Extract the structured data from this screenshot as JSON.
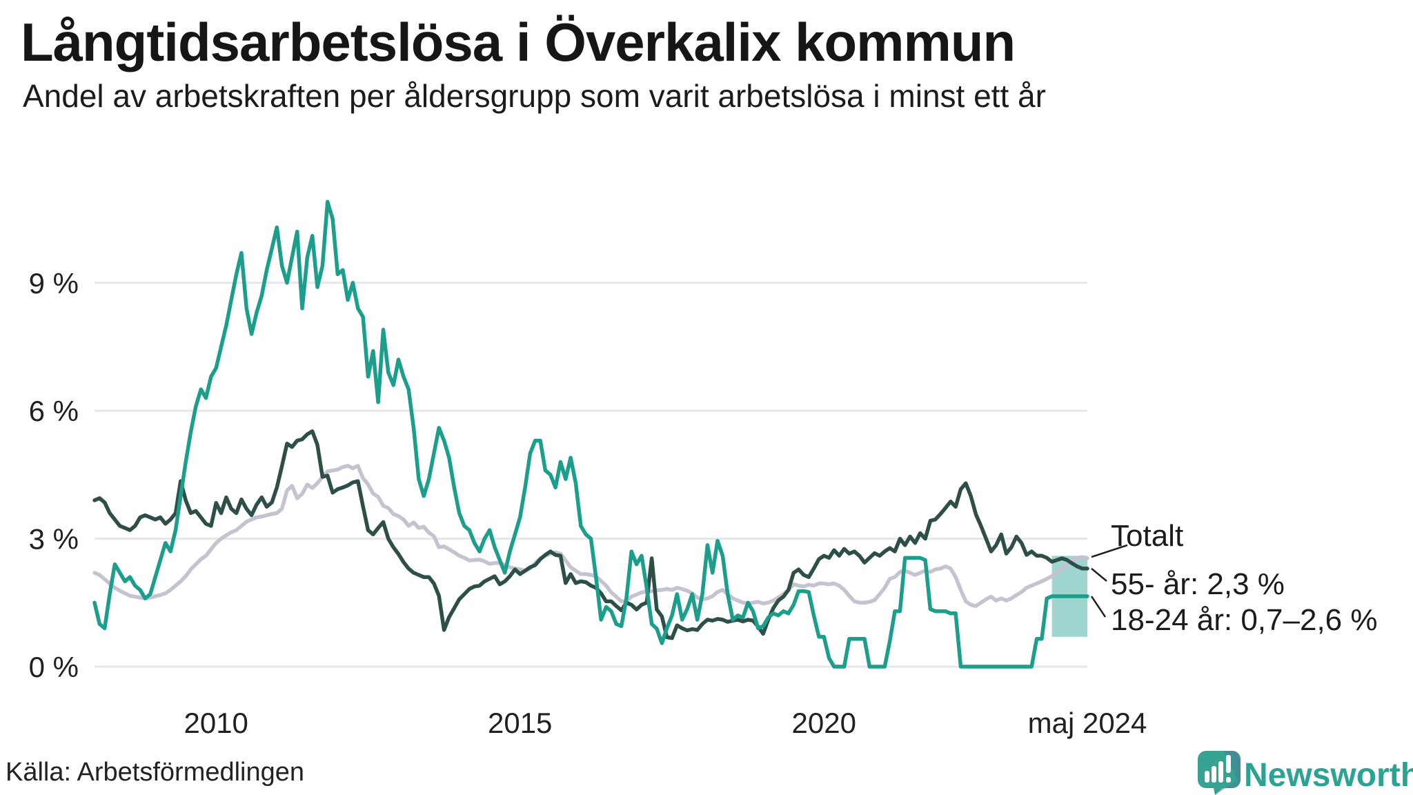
{
  "header": {
    "title": "Långtidsarbetslösa i Överkalix kommun",
    "subtitle": "Andel av arbetskraften per åldersgrupp som varit arbetslösa i minst ett år"
  },
  "footer": {
    "source": "Källa: Arbetsförmedlingen",
    "brand": "Newsworthy"
  },
  "colors": {
    "background": "#ffffff",
    "gridline": "#e7e7eb",
    "text": "#1b1b1b",
    "axis_text": "#202020",
    "brand_teal": "#2ba393",
    "leader_line": "#1f1f1f"
  },
  "chart_data": {
    "type": "line",
    "title": "Långtidsarbetslösa i Överkalix kommun",
    "subtitle": "Andel av arbetskraften per åldersgrupp som varit arbetslösa i minst ett år",
    "x_unit": "month",
    "x_start": "2008-01",
    "x_end": "2024-05",
    "months_total": 197,
    "ylim": [
      0,
      11.5
    ],
    "grid": true,
    "yticks": [
      {
        "value": 0,
        "label": "0 %"
      },
      {
        "value": 3,
        "label": "3 %"
      },
      {
        "value": 6,
        "label": "6 %"
      },
      {
        "value": 9,
        "label": "9 %"
      }
    ],
    "xticks": [
      {
        "month_index": 24,
        "label": "2010"
      },
      {
        "month_index": 84,
        "label": "2015"
      },
      {
        "month_index": 144,
        "label": "2020"
      },
      {
        "month_index": 196,
        "label": "maj 2024"
      }
    ],
    "series": [
      {
        "name": "Totalt",
        "color": "#c5c3cf",
        "values": [
          2.2,
          2.15,
          2.05,
          1.95,
          1.85,
          1.78,
          1.72,
          1.66,
          1.64,
          1.62,
          1.6,
          1.62,
          1.65,
          1.68,
          1.72,
          1.8,
          1.9,
          2.0,
          2.12,
          2.28,
          2.4,
          2.52,
          2.6,
          2.75,
          2.9,
          3.0,
          3.08,
          3.15,
          3.2,
          3.3,
          3.4,
          3.45,
          3.5,
          3.52,
          3.55,
          3.58,
          3.6,
          3.7,
          4.13,
          4.24,
          3.95,
          4.05,
          4.27,
          4.19,
          4.3,
          4.45,
          4.58,
          4.6,
          4.62,
          4.68,
          4.71,
          4.65,
          4.71,
          4.42,
          4.27,
          4.06,
          3.98,
          3.77,
          3.72,
          3.58,
          3.53,
          3.45,
          3.3,
          3.38,
          3.25,
          3.28,
          3.14,
          3.06,
          2.8,
          2.82,
          2.75,
          2.68,
          2.6,
          2.55,
          2.49,
          2.5,
          2.51,
          2.47,
          2.41,
          2.43,
          2.43,
          2.38,
          2.33,
          2.3,
          2.28,
          2.25,
          2.3,
          2.43,
          2.54,
          2.6,
          2.65,
          2.68,
          2.65,
          2.49,
          2.33,
          2.25,
          2.17,
          2.17,
          2.15,
          2.12,
          2.01,
          1.9,
          1.74,
          1.64,
          1.53,
          1.53,
          1.64,
          1.69,
          1.74,
          1.76,
          1.77,
          1.79,
          1.8,
          1.82,
          1.8,
          1.85,
          1.82,
          1.78,
          1.72,
          1.62,
          1.58,
          1.6,
          1.65,
          1.75,
          1.8,
          1.7,
          1.6,
          1.55,
          1.5,
          1.48,
          1.5,
          1.52,
          1.48,
          1.5,
          1.55,
          1.62,
          1.7,
          1.8,
          1.93,
          1.9,
          1.88,
          1.92,
          1.9,
          1.95,
          1.95,
          1.93,
          1.95,
          1.9,
          1.8,
          1.66,
          1.53,
          1.5,
          1.5,
          1.52,
          1.56,
          1.7,
          1.85,
          2.06,
          2.1,
          2.22,
          2.25,
          2.2,
          2.15,
          2.2,
          2.25,
          2.22,
          2.28,
          2.3,
          2.35,
          2.3,
          2.1,
          1.8,
          1.53,
          1.45,
          1.42,
          1.5,
          1.58,
          1.64,
          1.55,
          1.6,
          1.55,
          1.6,
          1.68,
          1.75,
          1.85,
          1.9,
          1.95,
          2.0,
          2.06,
          2.12,
          2.2,
          2.3,
          2.4,
          2.49,
          2.55,
          2.57,
          2.54
        ]
      },
      {
        "name": "55- år",
        "color": "#2d4f47",
        "end_label_value": "2,3 %",
        "values": [
          3.9,
          3.95,
          3.85,
          3.6,
          3.45,
          3.3,
          3.25,
          3.2,
          3.3,
          3.5,
          3.55,
          3.5,
          3.45,
          3.5,
          3.35,
          3.45,
          3.6,
          4.35,
          3.9,
          3.6,
          3.65,
          3.5,
          3.35,
          3.3,
          3.84,
          3.6,
          3.97,
          3.7,
          3.6,
          3.92,
          3.7,
          3.55,
          3.8,
          3.97,
          3.75,
          3.85,
          4.2,
          4.7,
          5.23,
          5.15,
          5.3,
          5.33,
          5.45,
          5.52,
          5.2,
          4.45,
          4.48,
          4.08,
          4.16,
          4.2,
          4.25,
          4.32,
          4.35,
          3.76,
          3.2,
          3.1,
          3.25,
          3.39,
          3.0,
          2.8,
          2.64,
          2.45,
          2.3,
          2.2,
          2.15,
          2.1,
          2.1,
          1.95,
          1.66,
          0.86,
          1.16,
          1.37,
          1.58,
          1.7,
          1.82,
          1.88,
          1.9,
          2.0,
          2.06,
          2.12,
          1.93,
          2.0,
          2.12,
          2.28,
          2.17,
          2.25,
          2.33,
          2.38,
          2.52,
          2.62,
          2.7,
          2.62,
          2.6,
          1.96,
          2.17,
          1.96,
          2.0,
          1.98,
          1.9,
          1.85,
          1.72,
          1.53,
          1.53,
          1.42,
          1.32,
          1.5,
          1.45,
          1.34,
          1.45,
          1.5,
          2.54,
          1.34,
          1.18,
          0.69,
          0.67,
          0.97,
          0.9,
          0.85,
          0.88,
          0.86,
          1.0,
          1.1,
          1.08,
          1.12,
          1.1,
          1.05,
          1.08,
          1.1,
          1.06,
          1.1,
          1.08,
          0.94,
          0.77,
          1.1,
          1.37,
          1.55,
          1.64,
          1.8,
          2.2,
          2.28,
          2.15,
          2.1,
          2.3,
          2.52,
          2.6,
          2.55,
          2.73,
          2.6,
          2.76,
          2.65,
          2.7,
          2.6,
          2.44,
          2.55,
          2.66,
          2.6,
          2.7,
          2.78,
          2.7,
          3.0,
          2.85,
          3.05,
          2.9,
          3.13,
          3.0,
          3.42,
          3.45,
          3.58,
          3.72,
          3.87,
          3.75,
          4.16,
          4.3,
          4.0,
          3.57,
          3.3,
          3.0,
          2.7,
          2.85,
          3.1,
          2.65,
          2.8,
          3.05,
          2.9,
          2.62,
          2.7,
          2.6,
          2.6,
          2.55,
          2.46,
          2.5,
          2.54,
          2.5,
          2.42,
          2.35,
          2.3,
          2.3
        ]
      },
      {
        "name": "18-24 år",
        "color": "#1b9e8c",
        "end_label_value": "0,7–2,6 %",
        "values": [
          1.5,
          1.0,
          0.9,
          1.7,
          2.4,
          2.2,
          2.0,
          2.1,
          1.9,
          1.8,
          1.6,
          1.7,
          2.1,
          2.5,
          2.9,
          2.7,
          3.2,
          4.0,
          4.8,
          5.5,
          6.1,
          6.5,
          6.3,
          6.8,
          7.0,
          7.5,
          8.0,
          8.6,
          9.2,
          9.7,
          8.4,
          7.8,
          8.3,
          8.7,
          9.3,
          9.8,
          10.3,
          9.4,
          9.0,
          9.6,
          10.2,
          8.4,
          9.6,
          10.1,
          8.9,
          9.4,
          10.9,
          10.5,
          9.2,
          9.3,
          8.6,
          9.0,
          8.4,
          8.2,
          6.8,
          7.4,
          6.2,
          7.9,
          6.9,
          6.6,
          7.2,
          6.8,
          6.5,
          5.6,
          4.4,
          4.0,
          4.4,
          5.0,
          5.6,
          5.3,
          4.9,
          4.2,
          3.6,
          3.3,
          3.2,
          2.9,
          2.7,
          3.0,
          3.2,
          2.8,
          2.5,
          2.2,
          2.7,
          3.1,
          3.5,
          4.2,
          5.0,
          5.3,
          5.3,
          4.6,
          4.5,
          4.2,
          4.8,
          4.4,
          4.9,
          4.3,
          3.3,
          3.1,
          3.0,
          2.1,
          1.1,
          1.4,
          1.3,
          1.0,
          0.95,
          1.6,
          2.7,
          2.4,
          2.6,
          1.85,
          1.0,
          0.89,
          0.55,
          0.9,
          1.2,
          1.7,
          1.1,
          1.35,
          1.7,
          1.1,
          1.7,
          2.85,
          2.2,
          2.95,
          2.6,
          1.7,
          1.1,
          1.2,
          1.15,
          1.5,
          1.3,
          0.9,
          0.95,
          1.15,
          1.25,
          1.2,
          1.3,
          1.25,
          1.45,
          1.77,
          1.77,
          1.75,
          1.2,
          0.7,
          0.7,
          0.2,
          0.0,
          0.0,
          0.0,
          0.65,
          0.65,
          0.65,
          0.65,
          0.0,
          0.0,
          0.0,
          0.0,
          0.6,
          1.3,
          1.3,
          2.55,
          2.55,
          2.55,
          2.55,
          2.5,
          1.35,
          1.3,
          1.3,
          1.3,
          1.25,
          1.25,
          0.0,
          0.0,
          0.0,
          0.0,
          0.0,
          0.0,
          0.0,
          0.0,
          0.0,
          0.0,
          0.0,
          0.0,
          0.0,
          0.0,
          0.0,
          0.65,
          0.65,
          1.6,
          1.65,
          1.65,
          1.65,
          1.65,
          1.65,
          1.65,
          1.65,
          1.65
        ]
      }
    ],
    "uncertainty_band": {
      "series": "18-24 år",
      "start_month_index": 189,
      "end_month_index": 196,
      "low": 0.7,
      "high": 2.6,
      "color": "#1b9e8c",
      "opacity": 0.42
    },
    "annotations": [
      {
        "id": "ann-totalt",
        "label": "Totalt",
        "series": "Totalt"
      },
      {
        "id": "ann-55",
        "label": "55- år: 2,3 %",
        "series": "55- år"
      },
      {
        "id": "ann-1824",
        "label": "18-24 år: 0,7–2,6 %",
        "series": "18-24 år"
      }
    ],
    "legend_position": "right-of-line-ends"
  }
}
